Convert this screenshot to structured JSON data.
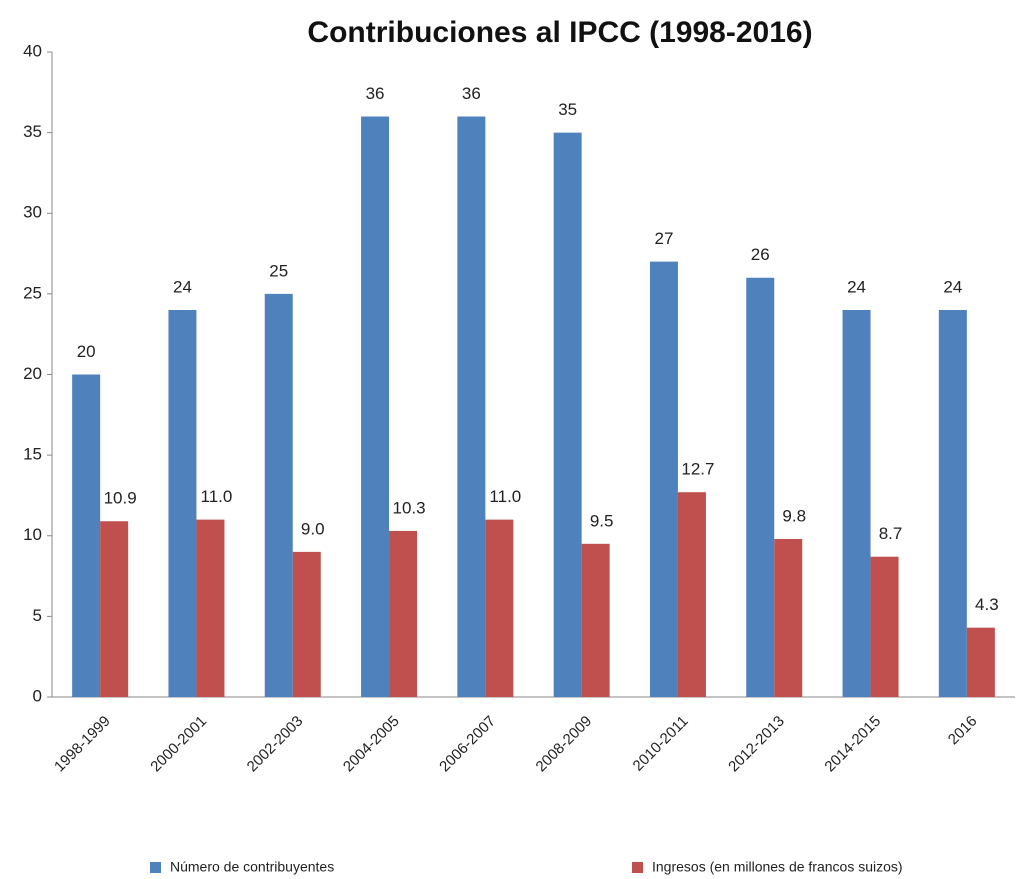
{
  "chart_data": {
    "type": "bar",
    "title": "Contribuciones al IPCC (1998-2016)",
    "categories": [
      "1998-1999",
      "2000-2001",
      "2002-2003",
      "2004-2005",
      "2006-2007",
      "2008-2009",
      "2010-2011",
      "2012-2013",
      "2014-2015",
      "2016"
    ],
    "series": [
      {
        "name": "Número de contribuyentes",
        "color": "#4f81bd",
        "values": [
          20,
          24,
          25,
          36,
          36,
          35,
          27,
          26,
          24,
          24
        ]
      },
      {
        "name": "Ingresos (en millones de francos suizos)",
        "color": "#c0504d",
        "values": [
          10.9,
          11,
          9,
          10.3,
          11,
          9.5,
          12.7,
          9.8,
          8.7,
          4.3
        ],
        "value_labels": [
          "10.9",
          "11.0",
          "9.0",
          "10.3",
          "11.0",
          "9.5",
          "12.7",
          "9.8",
          "8.7",
          "4.3"
        ]
      }
    ],
    "ylim": [
      0,
      40
    ],
    "yticks": [
      0,
      5,
      10,
      15,
      20,
      25,
      30,
      35,
      40
    ],
    "grid": false,
    "legend": "bottom"
  }
}
